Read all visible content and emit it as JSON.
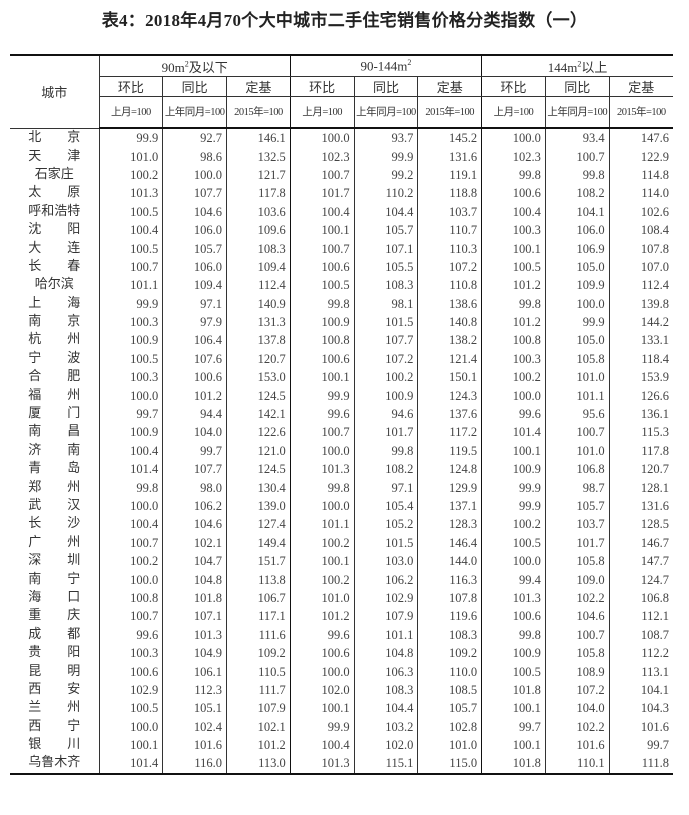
{
  "title": "表4：2018年4月70个大中城市二手住宅销售价格分类指数（一）",
  "header": {
    "city": "城市",
    "groups": [
      {
        "base": "90m",
        "sup": "2",
        "suffix": "及以下"
      },
      {
        "base": "90-144m",
        "sup": "2",
        "suffix": ""
      },
      {
        "base": "144m",
        "sup": "2",
        "suffix": "以上"
      }
    ],
    "subcols": [
      "环比",
      "同比",
      "定基"
    ],
    "bases": [
      "上月=100",
      "上年同月=100",
      "2015年=100"
    ]
  },
  "rows": [
    [
      "北　　京",
      "99.9",
      "92.7",
      "146.1",
      "100.0",
      "93.7",
      "145.2",
      "100.0",
      "93.4",
      "147.6"
    ],
    [
      "天　　津",
      "101.0",
      "98.6",
      "132.5",
      "102.3",
      "99.9",
      "131.6",
      "102.3",
      "100.7",
      "122.9"
    ],
    [
      "石家庄",
      "100.2",
      "100.0",
      "121.7",
      "100.7",
      "99.2",
      "119.1",
      "99.8",
      "99.8",
      "114.8"
    ],
    [
      "太　　原",
      "101.3",
      "107.7",
      "117.8",
      "101.7",
      "110.2",
      "118.8",
      "100.6",
      "108.2",
      "114.0"
    ],
    [
      "呼和浩特",
      "100.5",
      "104.6",
      "103.6",
      "100.4",
      "104.4",
      "103.7",
      "100.4",
      "104.1",
      "102.6"
    ],
    [
      "沈　　阳",
      "100.4",
      "106.0",
      "109.6",
      "100.1",
      "105.7",
      "110.7",
      "100.3",
      "106.0",
      "108.4"
    ],
    [
      "大　　连",
      "100.5",
      "105.7",
      "108.3",
      "100.7",
      "107.1",
      "110.3",
      "100.1",
      "106.9",
      "107.8"
    ],
    [
      "长　　春",
      "100.7",
      "106.0",
      "109.4",
      "100.6",
      "105.5",
      "107.2",
      "100.5",
      "105.0",
      "107.0"
    ],
    [
      "哈尔滨",
      "101.1",
      "109.4",
      "112.4",
      "100.5",
      "108.3",
      "110.8",
      "101.2",
      "109.9",
      "112.4"
    ],
    [
      "上　　海",
      "99.9",
      "97.1",
      "140.9",
      "99.8",
      "98.1",
      "138.6",
      "99.8",
      "100.0",
      "139.8"
    ],
    [
      "南　　京",
      "100.3",
      "97.9",
      "131.3",
      "100.9",
      "101.5",
      "140.8",
      "101.2",
      "99.9",
      "144.2"
    ],
    [
      "杭　　州",
      "100.9",
      "106.4",
      "137.8",
      "100.8",
      "107.7",
      "138.2",
      "100.8",
      "105.0",
      "133.1"
    ],
    [
      "宁　　波",
      "100.5",
      "107.6",
      "120.7",
      "100.6",
      "107.2",
      "121.4",
      "100.3",
      "105.8",
      "118.4"
    ],
    [
      "合　　肥",
      "100.3",
      "100.6",
      "153.0",
      "100.1",
      "100.2",
      "150.1",
      "100.2",
      "101.0",
      "153.9"
    ],
    [
      "福　　州",
      "100.0",
      "101.2",
      "124.5",
      "99.9",
      "100.9",
      "124.3",
      "100.0",
      "101.1",
      "126.6"
    ],
    [
      "厦　　门",
      "99.7",
      "94.4",
      "142.1",
      "99.6",
      "94.6",
      "137.6",
      "99.6",
      "95.6",
      "136.1"
    ],
    [
      "南　　昌",
      "100.9",
      "104.0",
      "122.6",
      "100.7",
      "101.7",
      "117.2",
      "101.4",
      "100.7",
      "115.3"
    ],
    [
      "济　　南",
      "100.4",
      "99.7",
      "121.0",
      "100.0",
      "99.8",
      "119.5",
      "100.1",
      "101.0",
      "117.8"
    ],
    [
      "青　　岛",
      "101.4",
      "107.7",
      "124.5",
      "101.3",
      "108.2",
      "124.8",
      "100.9",
      "106.8",
      "120.7"
    ],
    [
      "郑　　州",
      "99.8",
      "98.0",
      "130.4",
      "99.8",
      "97.1",
      "129.9",
      "99.9",
      "98.7",
      "128.1"
    ],
    [
      "武　　汉",
      "100.0",
      "106.2",
      "139.0",
      "100.0",
      "105.4",
      "137.1",
      "99.9",
      "105.7",
      "131.6"
    ],
    [
      "长　　沙",
      "100.4",
      "104.6",
      "127.4",
      "101.1",
      "105.2",
      "128.3",
      "100.2",
      "103.7",
      "128.5"
    ],
    [
      "广　　州",
      "100.7",
      "102.1",
      "149.4",
      "100.2",
      "101.5",
      "146.4",
      "100.5",
      "101.7",
      "146.7"
    ],
    [
      "深　　圳",
      "100.2",
      "104.7",
      "151.7",
      "100.1",
      "103.0",
      "144.0",
      "100.0",
      "105.8",
      "147.7"
    ],
    [
      "南　　宁",
      "100.0",
      "104.8",
      "113.8",
      "100.2",
      "106.2",
      "116.3",
      "99.4",
      "109.0",
      "124.7"
    ],
    [
      "海　　口",
      "100.8",
      "101.8",
      "106.7",
      "101.0",
      "102.9",
      "107.8",
      "101.3",
      "102.2",
      "106.8"
    ],
    [
      "重　　庆",
      "100.7",
      "107.1",
      "117.1",
      "101.2",
      "107.9",
      "119.6",
      "100.6",
      "104.6",
      "112.1"
    ],
    [
      "成　　都",
      "99.6",
      "101.3",
      "111.6",
      "99.6",
      "101.1",
      "108.3",
      "99.8",
      "100.7",
      "108.7"
    ],
    [
      "贵　　阳",
      "100.3",
      "104.9",
      "109.2",
      "100.6",
      "104.8",
      "109.2",
      "100.9",
      "105.8",
      "112.2"
    ],
    [
      "昆　　明",
      "100.6",
      "106.1",
      "110.5",
      "100.0",
      "106.3",
      "110.0",
      "100.5",
      "108.9",
      "113.1"
    ],
    [
      "西　　安",
      "102.9",
      "112.3",
      "111.7",
      "102.0",
      "108.3",
      "108.5",
      "101.8",
      "107.2",
      "104.1"
    ],
    [
      "兰　　州",
      "100.5",
      "105.1",
      "107.9",
      "100.1",
      "104.4",
      "105.7",
      "100.1",
      "104.0",
      "104.3"
    ],
    [
      "西　　宁",
      "100.0",
      "102.4",
      "102.1",
      "99.9",
      "103.2",
      "102.8",
      "99.7",
      "102.2",
      "101.6"
    ],
    [
      "银　　川",
      "100.1",
      "101.6",
      "101.2",
      "100.4",
      "102.0",
      "101.0",
      "100.1",
      "101.6",
      "99.7"
    ],
    [
      "乌鲁木齐",
      "101.4",
      "116.0",
      "113.0",
      "101.3",
      "115.1",
      "115.0",
      "101.8",
      "110.1",
      "111.8"
    ]
  ]
}
